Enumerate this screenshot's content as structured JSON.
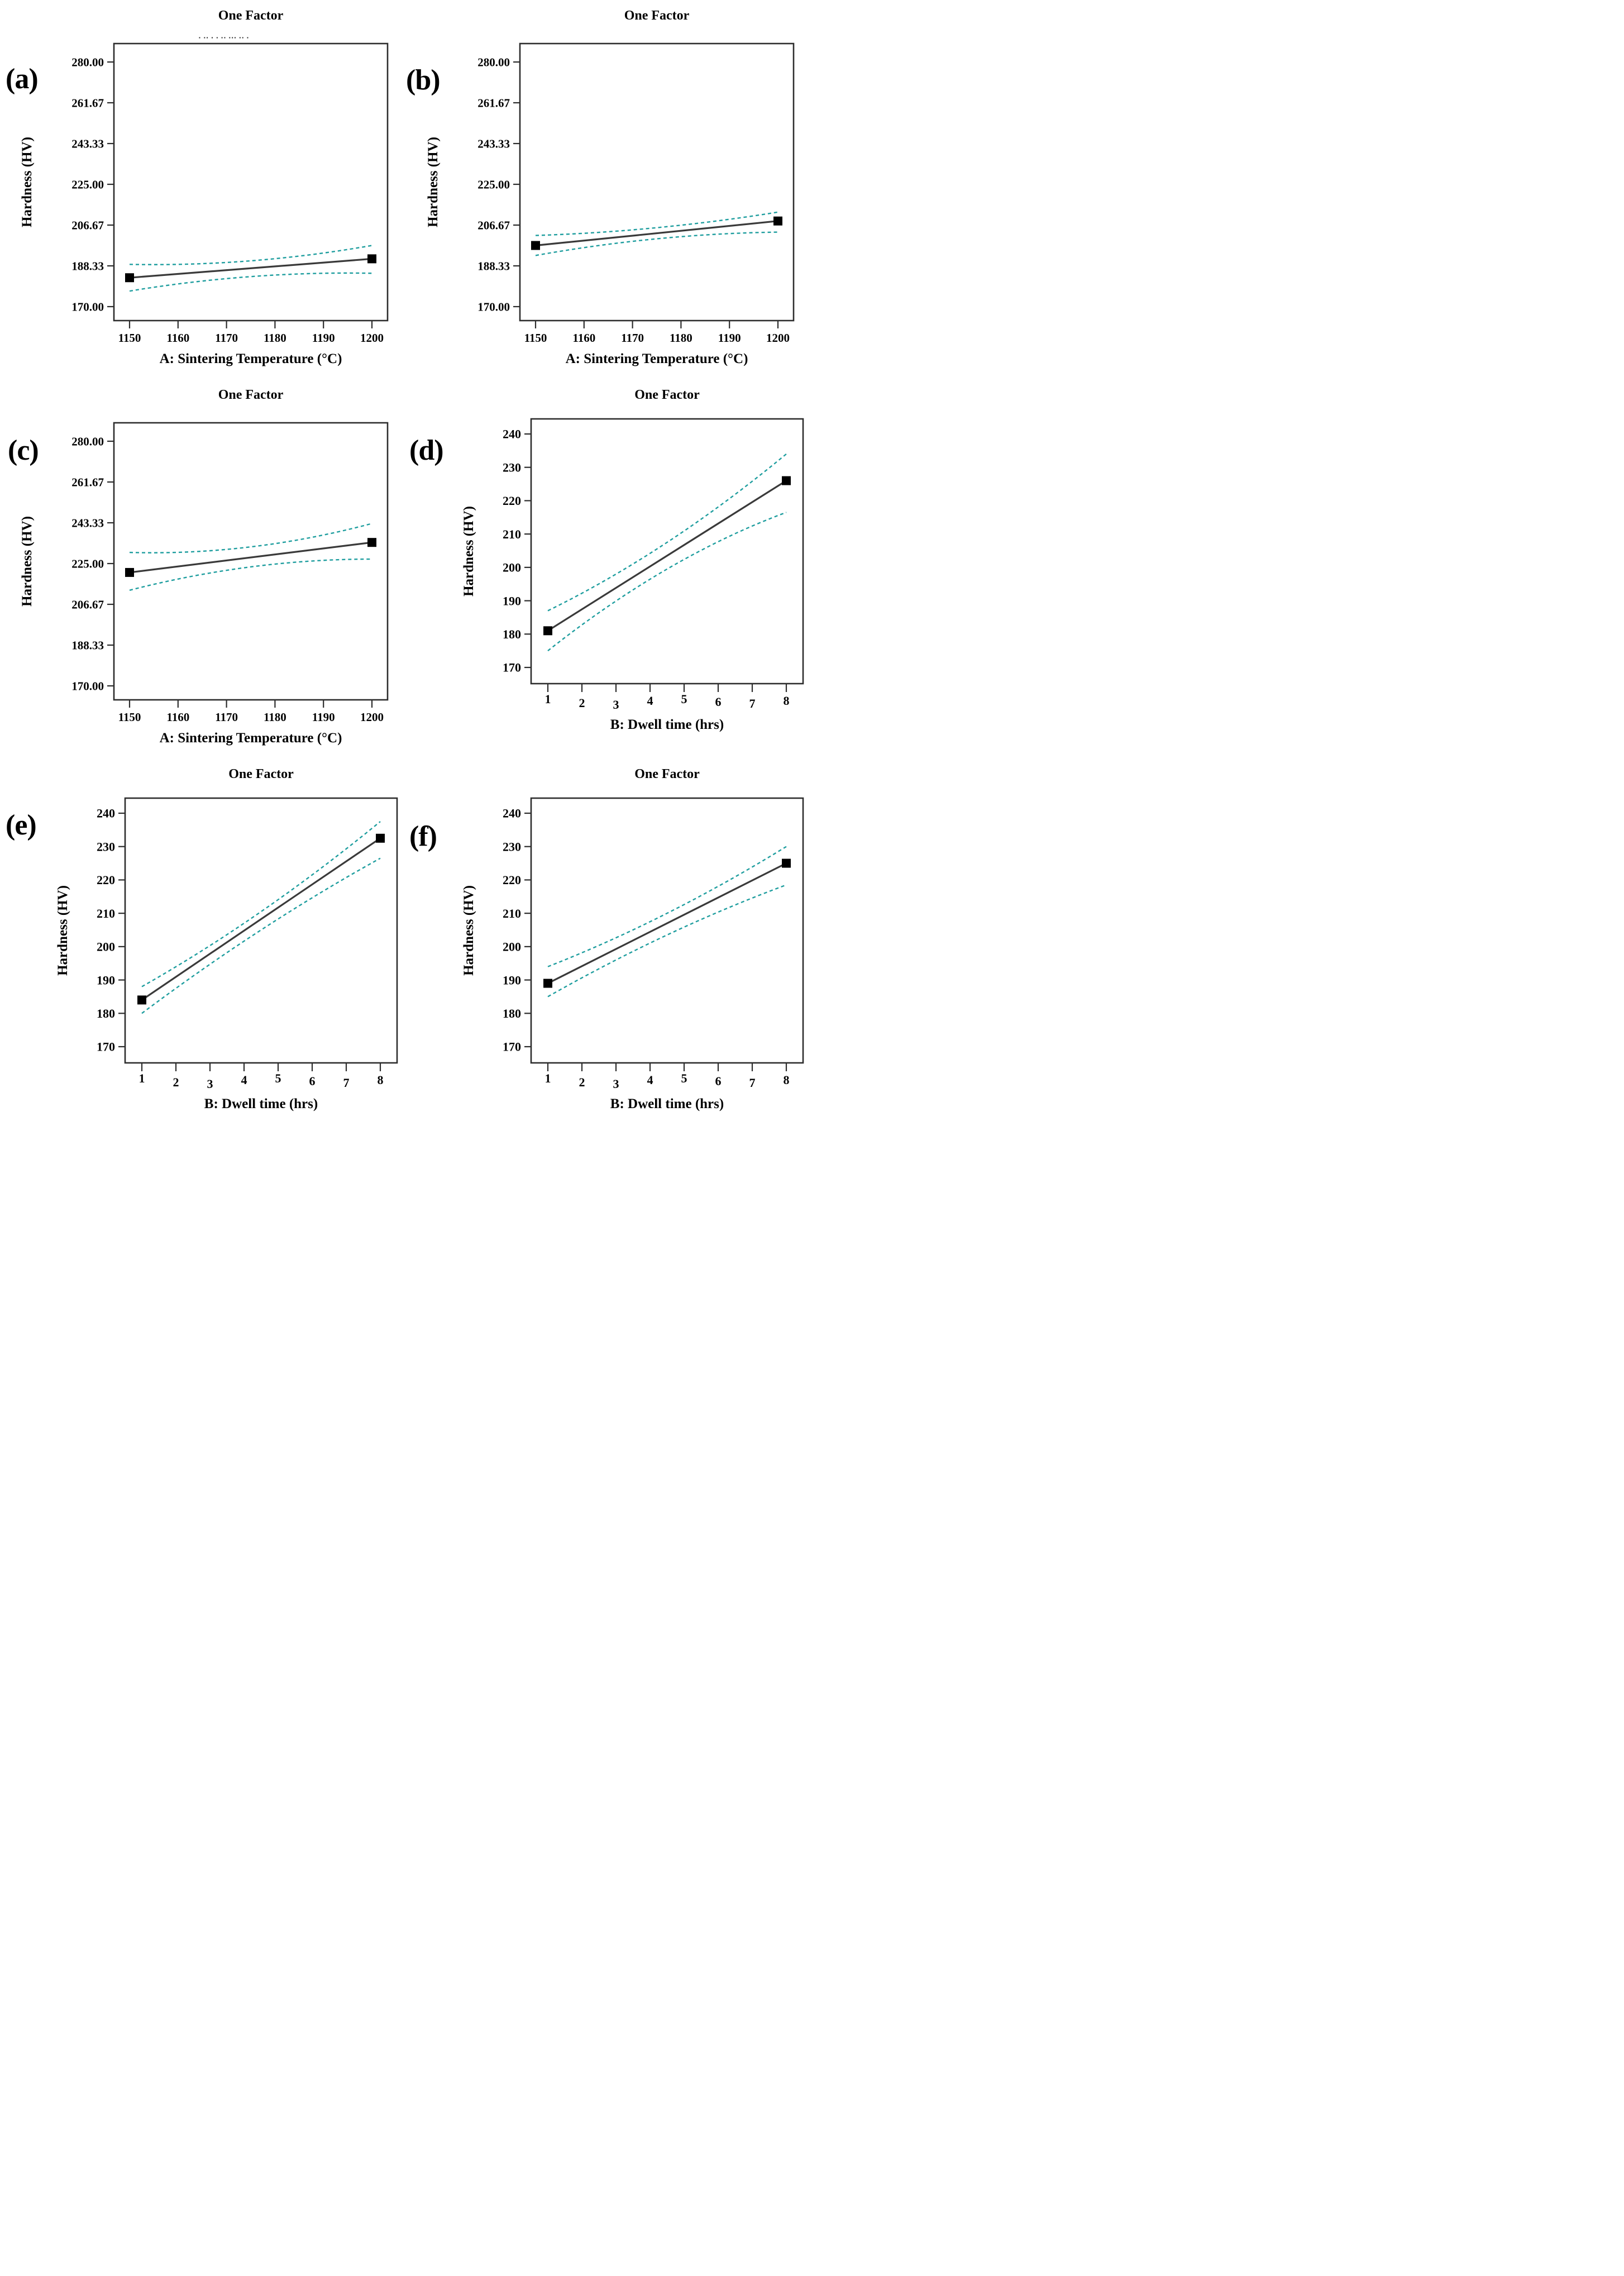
{
  "figure": {
    "background": "#ffffff",
    "description_title": "One Factor",
    "panels_count": 6
  },
  "colors": {
    "ci_band": "#1f9e9f",
    "mean_line": "#3a3a3a",
    "marker": "#000000",
    "frame": "#2d2d2d",
    "text": "#000000"
  },
  "chart_data": [
    {
      "panel_label": "(a)",
      "type": "line",
      "title": "One Factor",
      "title_artifact": "▪ ▪▪ ▪ ▪ ▪▪ ▪▪▪ ▪▪ ▪",
      "xlabel": "A: Sintering Temperature (°C)",
      "ylabel": "Hardness (HV)",
      "variant": "temp",
      "xlim": [
        1150,
        1200
      ],
      "ylim": [
        170,
        280
      ],
      "x_ticks": [
        [
          "1150",
          1150
        ],
        [
          "1160",
          1160
        ],
        [
          "1170",
          1170
        ],
        [
          "1180",
          1180
        ],
        [
          "1190",
          1190
        ],
        [
          "1200",
          1200
        ]
      ],
      "y_ticks": [
        [
          "280.00",
          280
        ],
        [
          "261.67",
          261.67
        ],
        [
          "243.33",
          243.33
        ],
        [
          "225.00",
          225
        ],
        [
          "206.67",
          206.67
        ],
        [
          "188.33",
          188.33
        ],
        [
          "170.00",
          170
        ]
      ],
      "mean": {
        "x": [
          1150,
          1200
        ],
        "y": [
          183,
          191.5
        ]
      },
      "ci_upper": [
        189,
        190.6,
        197.5
      ],
      "ci_lower": [
        177,
        183.5,
        185
      ]
    },
    {
      "panel_label": "(b)",
      "type": "line",
      "title": "One Factor",
      "xlabel": "A: Sintering Temperature (°C)",
      "ylabel": "Hardness (HV)",
      "variant": "temp",
      "xlim": [
        1150,
        1200
      ],
      "ylim": [
        170,
        280
      ],
      "x_ticks": [
        [
          "1150",
          1150
        ],
        [
          "1160",
          1160
        ],
        [
          "1170",
          1170
        ],
        [
          "1180",
          1180
        ],
        [
          "1190",
          1190
        ],
        [
          "1200",
          1200
        ]
      ],
      "y_ticks": [
        [
          "280.00",
          280
        ],
        [
          "261.67",
          261.67
        ],
        [
          "243.33",
          243.33
        ],
        [
          "225.00",
          225
        ],
        [
          "206.67",
          206.67
        ],
        [
          "188.33",
          188.33
        ],
        [
          "170.00",
          170
        ]
      ],
      "mean": {
        "x": [
          1150,
          1200
        ],
        "y": [
          197.5,
          208.5
        ]
      },
      "ci_upper": [
        202,
        205.5,
        212.5
      ],
      "ci_lower": [
        193,
        200.5,
        203.5
      ]
    },
    {
      "panel_label": "(c)",
      "type": "line",
      "title": "One Factor",
      "xlabel": "A: Sintering Temperature (°C)",
      "ylabel": "Hardness (HV)",
      "variant": "temp",
      "xlim": [
        1150,
        1200
      ],
      "ylim": [
        170,
        280
      ],
      "x_ticks": [
        [
          "1150",
          1150
        ],
        [
          "1160",
          1160
        ],
        [
          "1170",
          1170
        ],
        [
          "1180",
          1180
        ],
        [
          "1190",
          1190
        ],
        [
          "1200",
          1200
        ]
      ],
      "y_ticks": [
        [
          "280.00",
          280
        ],
        [
          "261.67",
          261.67
        ],
        [
          "243.33",
          243.33
        ],
        [
          "225.00",
          225
        ],
        [
          "206.67",
          206.67
        ],
        [
          "188.33",
          188.33
        ],
        [
          "170.00",
          170
        ]
      ],
      "mean": {
        "x": [
          1150,
          1200
        ],
        "y": [
          221,
          234.5
        ]
      },
      "ci_upper": [
        230,
        232.5,
        243
      ],
      "ci_lower": [
        213,
        223.5,
        227
      ]
    },
    {
      "panel_label": "(d)",
      "type": "line",
      "title": "One Factor",
      "xlabel": "B: Dwell time (hrs)",
      "ylabel": "Hardness (HV)",
      "variant": "dwell",
      "xlim": [
        1,
        8
      ],
      "ylim": [
        170,
        240
      ],
      "x_ticks": [
        [
          "1",
          1
        ],
        [
          "2",
          2
        ],
        [
          "3",
          3
        ],
        [
          "4",
          4
        ],
        [
          "5",
          5
        ],
        [
          "6",
          6
        ],
        [
          "7",
          7
        ],
        [
          "8",
          8
        ]
      ],
      "x_tick_dy": [
        0,
        7,
        10,
        3,
        0,
        5,
        8,
        3
      ],
      "y_ticks": [
        [
          "240",
          240
        ],
        [
          "230",
          230
        ],
        [
          "220",
          220
        ],
        [
          "210",
          210
        ],
        [
          "200",
          200
        ],
        [
          "190",
          190
        ],
        [
          "180",
          180
        ],
        [
          "170",
          170
        ]
      ],
      "mean": {
        "x": [
          1,
          8
        ],
        "y": [
          181,
          226
        ]
      },
      "ci_upper": [
        187,
        207.5,
        234
      ],
      "ci_lower": [
        175,
        199.5,
        216.5
      ]
    },
    {
      "panel_label": "(e)",
      "type": "line",
      "title": "One Factor",
      "xlabel": "B: Dwell time (hrs)",
      "ylabel": "Hardness (HV)",
      "variant": "dwell",
      "xlim": [
        1,
        8
      ],
      "ylim": [
        170,
        240
      ],
      "x_ticks": [
        [
          "1",
          1
        ],
        [
          "2",
          2
        ],
        [
          "3",
          3
        ],
        [
          "4",
          4
        ],
        [
          "5",
          5
        ],
        [
          "6",
          6
        ],
        [
          "7",
          7
        ],
        [
          "8",
          8
        ]
      ],
      "x_tick_dy": [
        0,
        7,
        10,
        3,
        0,
        5,
        8,
        3
      ],
      "y_ticks": [
        [
          "240",
          240
        ],
        [
          "230",
          230
        ],
        [
          "220",
          220
        ],
        [
          "210",
          210
        ],
        [
          "200",
          200
        ],
        [
          "190",
          190
        ],
        [
          "180",
          180
        ],
        [
          "170",
          170
        ]
      ],
      "mean": {
        "x": [
          1,
          8
        ],
        "y": [
          184,
          232.5
        ]
      },
      "ci_upper": [
        188,
        210.5,
        237.5
      ],
      "ci_lower": [
        180,
        205,
        226.5
      ]
    },
    {
      "panel_label": "(f)",
      "type": "line",
      "title": "One Factor",
      "xlabel": "B: Dwell time (hrs)",
      "ylabel": "Hardness (HV)",
      "variant": "dwell",
      "xlim": [
        1,
        8
      ],
      "ylim": [
        170,
        240
      ],
      "x_ticks": [
        [
          "1",
          1
        ],
        [
          "2",
          2
        ],
        [
          "3",
          3
        ],
        [
          "4",
          4
        ],
        [
          "5",
          5
        ],
        [
          "6",
          6
        ],
        [
          "7",
          7
        ],
        [
          "8",
          8
        ]
      ],
      "x_tick_dy": [
        0,
        7,
        10,
        3,
        0,
        5,
        8,
        3
      ],
      "y_ticks": [
        [
          "240",
          240
        ],
        [
          "230",
          230
        ],
        [
          "220",
          220
        ],
        [
          "210",
          210
        ],
        [
          "200",
          200
        ],
        [
          "190",
          190
        ],
        [
          "180",
          180
        ],
        [
          "170",
          170
        ]
      ],
      "mean": {
        "x": [
          1,
          8
        ],
        "y": [
          189,
          225
        ]
      },
      "ci_upper": [
        194,
        210,
        230
      ],
      "ci_lower": [
        185,
        203.5,
        218.5
      ]
    }
  ]
}
